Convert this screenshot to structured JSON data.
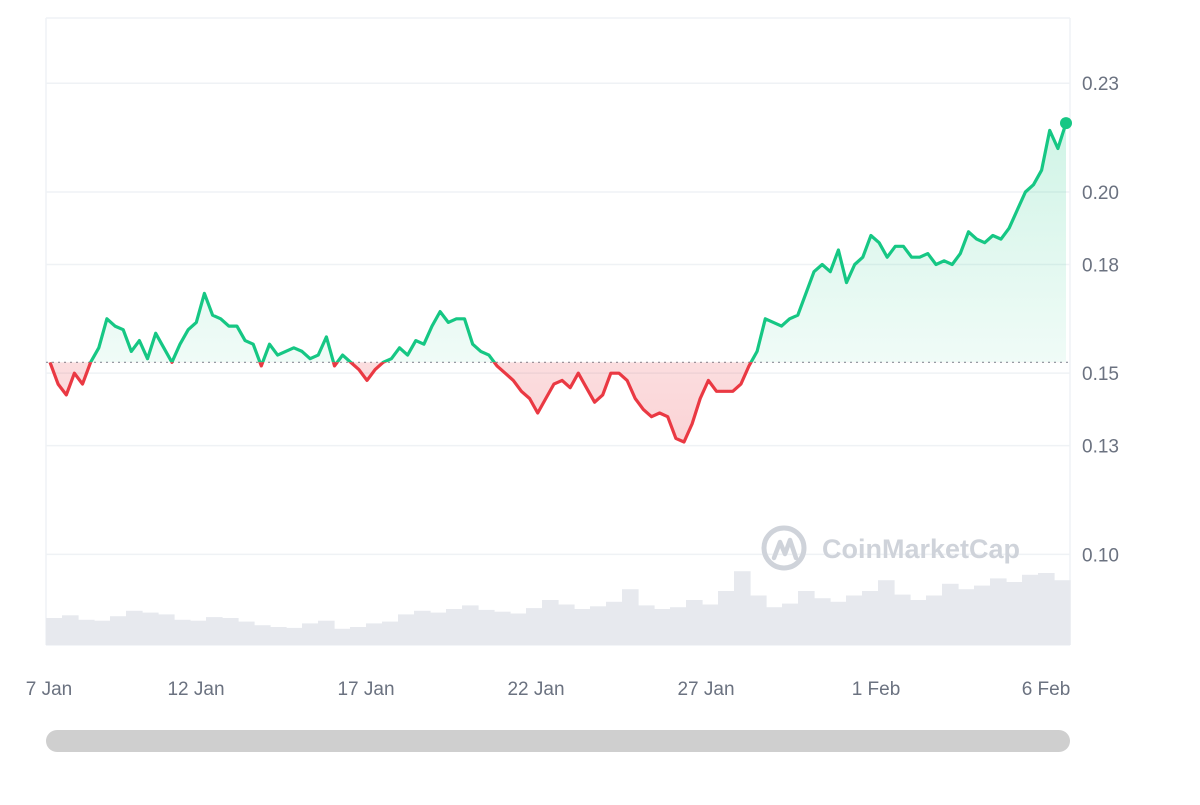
{
  "chart_data": {
    "type": "line",
    "title": "",
    "xlabel": "",
    "ylabel": "",
    "x_start": "2025-01-07",
    "x_end": "2025-02-06",
    "x_ticks": [
      "7 Jan",
      "12 Jan",
      "17 Jan",
      "22 Jan",
      "27 Jan",
      "1 Feb",
      "6 Feb"
    ],
    "y_ticks": [
      "0.23",
      "0.20",
      "0.18",
      "0.15",
      "0.13",
      "0.10"
    ],
    "ylim": [
      0.075,
      0.248
    ],
    "baseline": 0.153,
    "grid": true,
    "colors": {
      "up": "#16c784",
      "down": "#ea3943",
      "volume": "#e7e9ee",
      "grid": "#eff2f5"
    },
    "series": [
      {
        "values": [
          0.153,
          0.147,
          0.144,
          0.15,
          0.147,
          0.153,
          0.157,
          0.165,
          0.163,
          0.162,
          0.156,
          0.159,
          0.154,
          0.161,
          0.157,
          0.153,
          0.158,
          0.162,
          0.164,
          0.172,
          0.166,
          0.165,
          0.163,
          0.163,
          0.159,
          0.158,
          0.152,
          0.158,
          0.155,
          0.156,
          0.157,
          0.156,
          0.154,
          0.155,
          0.16,
          0.152,
          0.155,
          0.153,
          0.151,
          0.148,
          0.151,
          0.153,
          0.154,
          0.157,
          0.155,
          0.159,
          0.158,
          0.163,
          0.167,
          0.164,
          0.165,
          0.165,
          0.158,
          0.156,
          0.155,
          0.152,
          0.15,
          0.148,
          0.145,
          0.143,
          0.139,
          0.143,
          0.147,
          0.148,
          0.146,
          0.15,
          0.146,
          0.142,
          0.144,
          0.15,
          0.15,
          0.148,
          0.143,
          0.14,
          0.138,
          0.139,
          0.138,
          0.132,
          0.131,
          0.136,
          0.143,
          0.148,
          0.145,
          0.145,
          0.145,
          0.147,
          0.152,
          0.156,
          0.165,
          0.164,
          0.163,
          0.165,
          0.166,
          0.172,
          0.178,
          0.18,
          0.178,
          0.184,
          0.175,
          0.18,
          0.182,
          0.188,
          0.186,
          0.182,
          0.185,
          0.185,
          0.182,
          0.182,
          0.183,
          0.18,
          0.181,
          0.18,
          0.183,
          0.189,
          0.187,
          0.186,
          0.188,
          0.187,
          0.19,
          0.195,
          0.2,
          0.202,
          0.206,
          0.217,
          0.212,
          0.219
        ]
      }
    ],
    "volume_relative": [
      0.3,
      0.33,
      0.28,
      0.27,
      0.32,
      0.38,
      0.36,
      0.34,
      0.28,
      0.27,
      0.31,
      0.3,
      0.26,
      0.22,
      0.2,
      0.19,
      0.24,
      0.27,
      0.18,
      0.2,
      0.24,
      0.26,
      0.34,
      0.38,
      0.36,
      0.4,
      0.44,
      0.39,
      0.37,
      0.35,
      0.41,
      0.5,
      0.45,
      0.4,
      0.43,
      0.48,
      0.62,
      0.44,
      0.4,
      0.42,
      0.5,
      0.45,
      0.6,
      0.82,
      0.55,
      0.42,
      0.46,
      0.6,
      0.52,
      0.48,
      0.55,
      0.6,
      0.72,
      0.56,
      0.5,
      0.55,
      0.68,
      0.62,
      0.66,
      0.74,
      0.7,
      0.78,
      0.8,
      0.72
    ]
  },
  "watermark": {
    "text": "CoinMarketCap"
  }
}
